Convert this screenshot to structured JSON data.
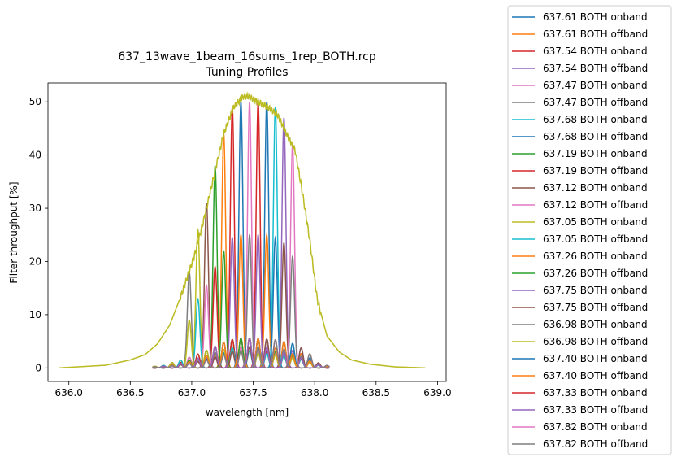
{
  "chart_data": {
    "type": "line",
    "title": "637_13wave_1beam_16sums_1rep_BOTH.rcp",
    "subtitle": "Tuning Profiles",
    "xlabel": "wavelength [nm]",
    "ylabel": "Filter throughput [%]",
    "xlim": [
      635.83,
      639.07
    ],
    "ylim": [
      -2.55,
      53.55
    ],
    "xticks": [
      636.0,
      636.5,
      637.0,
      637.5,
      638.0,
      638.5,
      639.0
    ],
    "xtick_labels": [
      "636.0",
      "636.5",
      "637.0",
      "637.5",
      "638.0",
      "638.5",
      "639.0"
    ],
    "yticks": [
      0,
      10,
      20,
      30,
      40,
      50
    ],
    "ytick_labels": [
      "0",
      "10",
      "20",
      "30",
      "40",
      "50"
    ],
    "grid": false,
    "legend_position": "outside-right",
    "sideband_fraction": 0.11,
    "series": [
      {
        "name": "637.61 BOTH onband",
        "color": "#1f77b4",
        "center": 637.61,
        "peak": 50,
        "kind": "onband"
      },
      {
        "name": "637.61 BOTH offband",
        "color": "#ff7f0e",
        "center": 637.61,
        "peak": 25,
        "kind": "offband"
      },
      {
        "name": "637.54 BOTH onband",
        "color": "#d62728",
        "center": 637.54,
        "peak": 50,
        "kind": "onband"
      },
      {
        "name": "637.54 BOTH offband",
        "color": "#9467bd",
        "center": 637.54,
        "peak": 25,
        "kind": "offband"
      },
      {
        "name": "637.47 BOTH onband",
        "color": "#e377c2",
        "center": 637.47,
        "peak": 50,
        "kind": "onband"
      },
      {
        "name": "637.47 BOTH offband",
        "color": "#7f7f7f",
        "center": 637.47,
        "peak": 25,
        "kind": "offband"
      },
      {
        "name": "637.68 BOTH onband",
        "color": "#17becf",
        "center": 637.68,
        "peak": 49,
        "kind": "onband"
      },
      {
        "name": "637.68 BOTH offband",
        "color": "#1f77b4",
        "center": 637.68,
        "peak": 24.5,
        "kind": "offband"
      },
      {
        "name": "637.19 BOTH onband",
        "color": "#2ca02c",
        "center": 637.19,
        "peak": 38,
        "kind": "onband"
      },
      {
        "name": "637.19 BOTH offband",
        "color": "#d62728",
        "center": 637.19,
        "peak": 19,
        "kind": "offband"
      },
      {
        "name": "637.12 BOTH onband",
        "color": "#8c564b",
        "center": 637.12,
        "peak": 31,
        "kind": "onband"
      },
      {
        "name": "637.12 BOTH offband",
        "color": "#e377c2",
        "center": 637.12,
        "peak": 15.5,
        "kind": "offband"
      },
      {
        "name": "637.05 BOTH onband",
        "color": "#bcbd22",
        "center": 637.05,
        "peak": 26,
        "kind": "onband"
      },
      {
        "name": "637.05 BOTH offband",
        "color": "#17becf",
        "center": 637.05,
        "peak": 13,
        "kind": "offband"
      },
      {
        "name": "637.26 BOTH onband",
        "color": "#ff7f0e",
        "center": 637.26,
        "peak": 44,
        "kind": "onband"
      },
      {
        "name": "637.26 BOTH offband",
        "color": "#2ca02c",
        "center": 637.26,
        "peak": 22,
        "kind": "offband"
      },
      {
        "name": "637.75 BOTH onband",
        "color": "#9467bd",
        "center": 637.75,
        "peak": 47,
        "kind": "onband"
      },
      {
        "name": "637.75 BOTH offband",
        "color": "#8c564b",
        "center": 637.75,
        "peak": 23.5,
        "kind": "offband"
      },
      {
        "name": "636.98 BOTH onband",
        "color": "#7f7f7f",
        "center": 636.98,
        "peak": 18,
        "kind": "onband"
      },
      {
        "name": "636.98 BOTH offband",
        "color": "#bcbd22",
        "center": 636.98,
        "peak": 9,
        "kind": "offband"
      },
      {
        "name": "637.40 BOTH onband",
        "color": "#1f77b4",
        "center": 637.4,
        "peak": 50,
        "kind": "onband"
      },
      {
        "name": "637.40 BOTH offband",
        "color": "#ff7f0e",
        "center": 637.4,
        "peak": 25,
        "kind": "offband"
      },
      {
        "name": "637.33 BOTH onband",
        "color": "#d62728",
        "center": 637.33,
        "peak": 49,
        "kind": "onband"
      },
      {
        "name": "637.33 BOTH offband",
        "color": "#9467bd",
        "center": 637.33,
        "peak": 24.5,
        "kind": "offband"
      },
      {
        "name": "637.82 BOTH onband",
        "color": "#e377c2",
        "center": 637.82,
        "peak": 42,
        "kind": "onband"
      },
      {
        "name": "637.82 BOTH offband",
        "color": "#7f7f7f",
        "center": 637.82,
        "peak": 21,
        "kind": "offband"
      }
    ],
    "prefilter": {
      "color": "#bcbd22",
      "x": [
        635.92,
        636.3,
        636.5,
        636.62,
        636.72,
        636.82,
        636.92,
        637.02,
        637.1,
        637.18,
        637.26,
        637.34,
        637.42,
        637.46,
        637.54,
        637.62,
        637.7,
        637.77,
        637.84,
        637.9,
        637.96,
        638.02,
        638.1,
        638.2,
        638.3,
        638.45,
        638.65,
        638.9
      ],
      "y": [
        0,
        0.5,
        1.5,
        2.5,
        4.5,
        8,
        14,
        21,
        28,
        36,
        44,
        49,
        51,
        51,
        50,
        49,
        47.5,
        44,
        41,
        33,
        24,
        13,
        6,
        3,
        1.5,
        0.7,
        0.2,
        0
      ]
    }
  }
}
